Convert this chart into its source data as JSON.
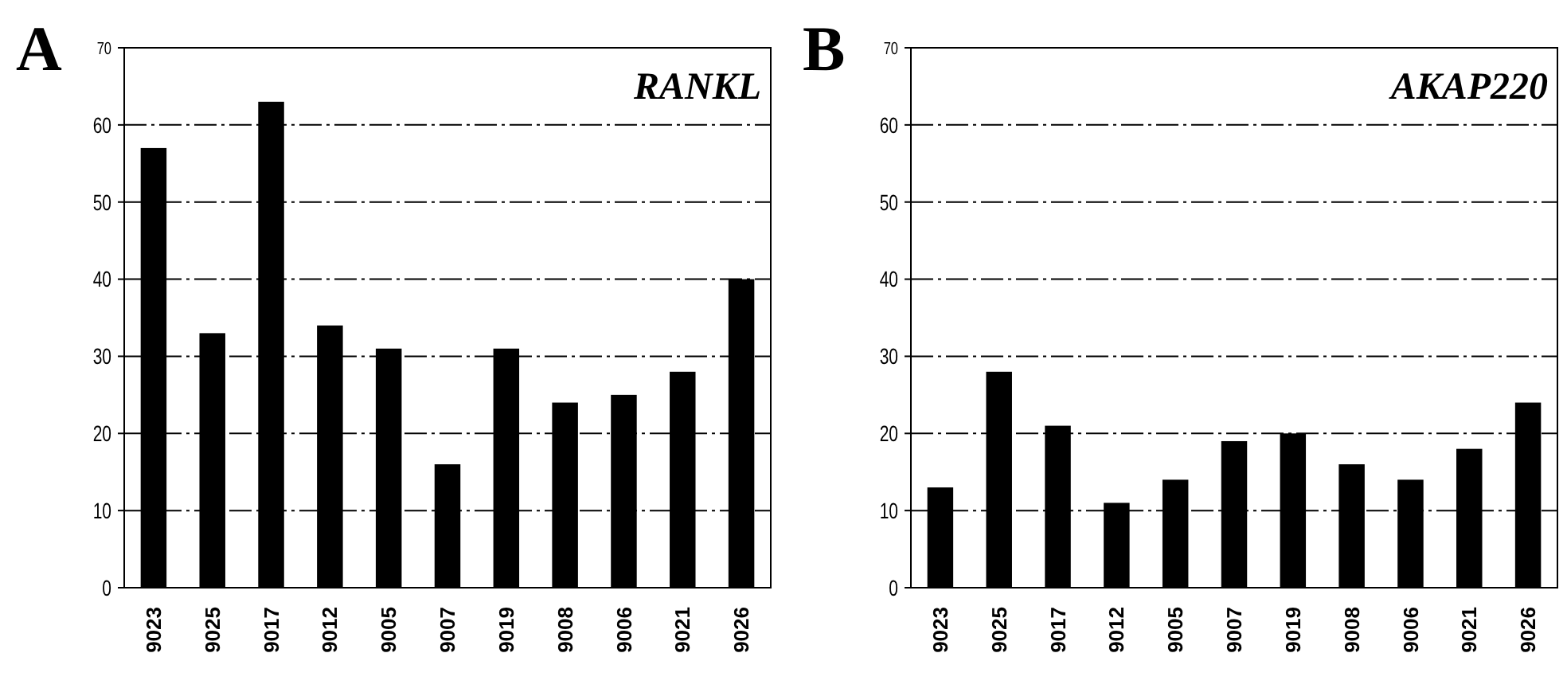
{
  "chart_data": [
    {
      "type": "bar",
      "title": "RANKL",
      "annotations": [
        "A"
      ],
      "categories": [
        "9023",
        "9025",
        "9017",
        "9012",
        "9005",
        "9007",
        "9019",
        "9008",
        "9006",
        "9021",
        "9026"
      ],
      "values": [
        57,
        33,
        63,
        34,
        31,
        16,
        31,
        24,
        25,
        28,
        40
      ],
      "color": "#000000",
      "ylim": [
        0,
        70
      ],
      "yticks": [
        0,
        10,
        20,
        30,
        40,
        50,
        60,
        70
      ],
      "grid": "y"
    },
    {
      "type": "bar",
      "title": "AKAP220",
      "annotations": [
        "B"
      ],
      "categories": [
        "9023",
        "9025",
        "9017",
        "9012",
        "9005",
        "9007",
        "9019",
        "9008",
        "9006",
        "9021",
        "9026"
      ],
      "values": [
        13,
        28,
        21,
        11,
        14,
        19,
        20,
        16,
        14,
        18,
        24
      ],
      "color": "#000000",
      "ylim": [
        0,
        70
      ],
      "yticks": [
        0,
        10,
        20,
        30,
        40,
        50,
        60,
        70
      ],
      "grid": "y"
    }
  ]
}
